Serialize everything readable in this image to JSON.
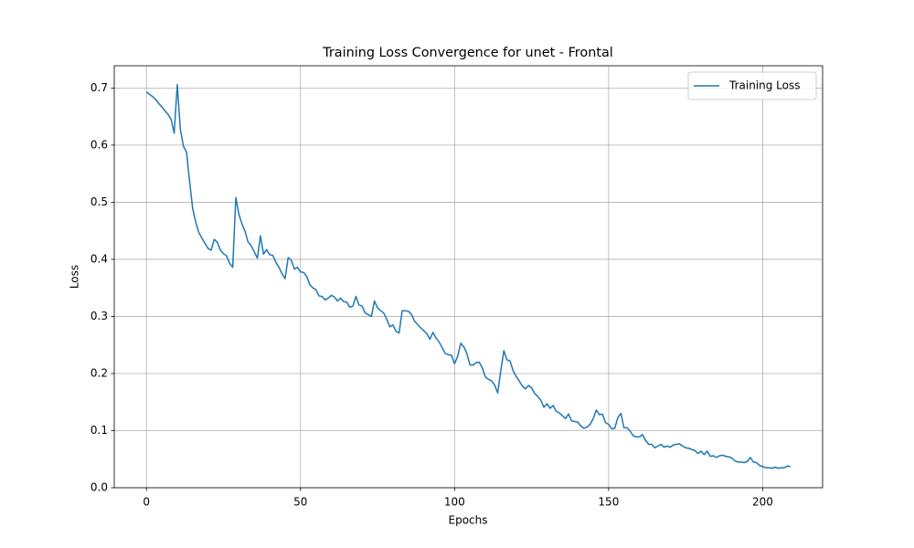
{
  "chart_data": {
    "type": "line",
    "title": "Training Loss Convergence for unet - Frontal",
    "x_label": "Epochs",
    "y_label": "Loss",
    "x": [
      0,
      1,
      2,
      3,
      4,
      5,
      6,
      7,
      8,
      9,
      10,
      11,
      12,
      13,
      14,
      15,
      16,
      17,
      18,
      19,
      20,
      21,
      22,
      23,
      24,
      25,
      26,
      27,
      28,
      29,
      30,
      31,
      32,
      33,
      34,
      35,
      36,
      37,
      38,
      39,
      40,
      41,
      42,
      43,
      44,
      45,
      46,
      47,
      48,
      49,
      50,
      51,
      52,
      53,
      54,
      55,
      56,
      57,
      58,
      59,
      60,
      61,
      62,
      63,
      64,
      65,
      66,
      67,
      68,
      69,
      70,
      71,
      72,
      73,
      74,
      75,
      76,
      77,
      78,
      79,
      80,
      81,
      82,
      83,
      84,
      85,
      86,
      87,
      88,
      89,
      90,
      91,
      92,
      93,
      94,
      95,
      96,
      97,
      98,
      99,
      100,
      101,
      102,
      103,
      104,
      105,
      106,
      107,
      108,
      109,
      110,
      111,
      112,
      113,
      114,
      115,
      116,
      117,
      118,
      119,
      120,
      121,
      122,
      123,
      124,
      125,
      126,
      127,
      128,
      129,
      130,
      131,
      132,
      133,
      134,
      135,
      136,
      137,
      138,
      139,
      140,
      141,
      142,
      143,
      144,
      145,
      146,
      147,
      148,
      149,
      150,
      151,
      152,
      153,
      154,
      155,
      156,
      157,
      158,
      159,
      160,
      161,
      162,
      163,
      164,
      165,
      166,
      167,
      168,
      169,
      170,
      171,
      172,
      173,
      174,
      175,
      176,
      177,
      178,
      179,
      180,
      181,
      182,
      183,
      184,
      185,
      186,
      187,
      188,
      189,
      190,
      191,
      192,
      193,
      194,
      195,
      196,
      197,
      198,
      199,
      200,
      201,
      202,
      203,
      204,
      205,
      206,
      207,
      208,
      209
    ],
    "series": [
      {
        "name": "Training Loss",
        "color": "#1f77b4",
        "values": [
          0.693,
          0.689,
          0.685,
          0.68,
          0.673,
          0.667,
          0.66,
          0.654,
          0.645,
          0.621,
          0.706,
          0.628,
          0.598,
          0.588,
          0.537,
          0.489,
          0.465,
          0.447,
          0.437,
          0.428,
          0.419,
          0.416,
          0.435,
          0.43,
          0.416,
          0.41,
          0.406,
          0.393,
          0.386,
          0.508,
          0.479,
          0.462,
          0.449,
          0.43,
          0.424,
          0.413,
          0.402,
          0.441,
          0.409,
          0.417,
          0.408,
          0.407,
          0.395,
          0.386,
          0.375,
          0.366,
          0.403,
          0.399,
          0.383,
          0.386,
          0.378,
          0.377,
          0.37,
          0.356,
          0.35,
          0.347,
          0.336,
          0.335,
          0.329,
          0.332,
          0.337,
          0.334,
          0.327,
          0.332,
          0.326,
          0.325,
          0.316,
          0.318,
          0.335,
          0.32,
          0.318,
          0.306,
          0.303,
          0.3,
          0.327,
          0.315,
          0.31,
          0.306,
          0.295,
          0.282,
          0.285,
          0.274,
          0.271,
          0.31,
          0.31,
          0.309,
          0.304,
          0.292,
          0.286,
          0.28,
          0.275,
          0.27,
          0.26,
          0.272,
          0.262,
          0.255,
          0.245,
          0.235,
          0.233,
          0.232,
          0.217,
          0.23,
          0.253,
          0.247,
          0.235,
          0.215,
          0.215,
          0.219,
          0.22,
          0.21,
          0.194,
          0.19,
          0.187,
          0.18,
          0.166,
          0.205,
          0.24,
          0.224,
          0.222,
          0.205,
          0.195,
          0.187,
          0.178,
          0.173,
          0.179,
          0.175,
          0.165,
          0.16,
          0.153,
          0.141,
          0.147,
          0.139,
          0.144,
          0.134,
          0.131,
          0.126,
          0.121,
          0.129,
          0.117,
          0.116,
          0.115,
          0.108,
          0.104,
          0.106,
          0.111,
          0.121,
          0.136,
          0.128,
          0.129,
          0.114,
          0.111,
          0.103,
          0.104,
          0.123,
          0.13,
          0.105,
          0.105,
          0.099,
          0.091,
          0.089,
          0.089,
          0.093,
          0.083,
          0.076,
          0.076,
          0.07,
          0.073,
          0.076,
          0.071,
          0.073,
          0.071,
          0.075,
          0.076,
          0.077,
          0.073,
          0.07,
          0.069,
          0.067,
          0.065,
          0.06,
          0.064,
          0.058,
          0.064,
          0.055,
          0.056,
          0.053,
          0.056,
          0.057,
          0.055,
          0.054,
          0.052,
          0.047,
          0.045,
          0.045,
          0.044,
          0.046,
          0.053,
          0.045,
          0.044,
          0.039,
          0.037,
          0.035,
          0.035,
          0.034,
          0.036,
          0.034,
          0.035,
          0.035,
          0.038,
          0.037
        ]
      }
    ],
    "xlim": [
      -10.45,
      219.45
    ],
    "xticks": [
      0,
      50,
      100,
      150,
      200
    ],
    "ylim": [
      0,
      0.739
    ],
    "yticks": [
      {
        "value": 0,
        "label": "0.0"
      },
      0.1,
      0.2,
      0.3,
      0.4,
      0.5,
      0.6,
      0.7
    ],
    "grid": true,
    "legend": "upper right"
  }
}
